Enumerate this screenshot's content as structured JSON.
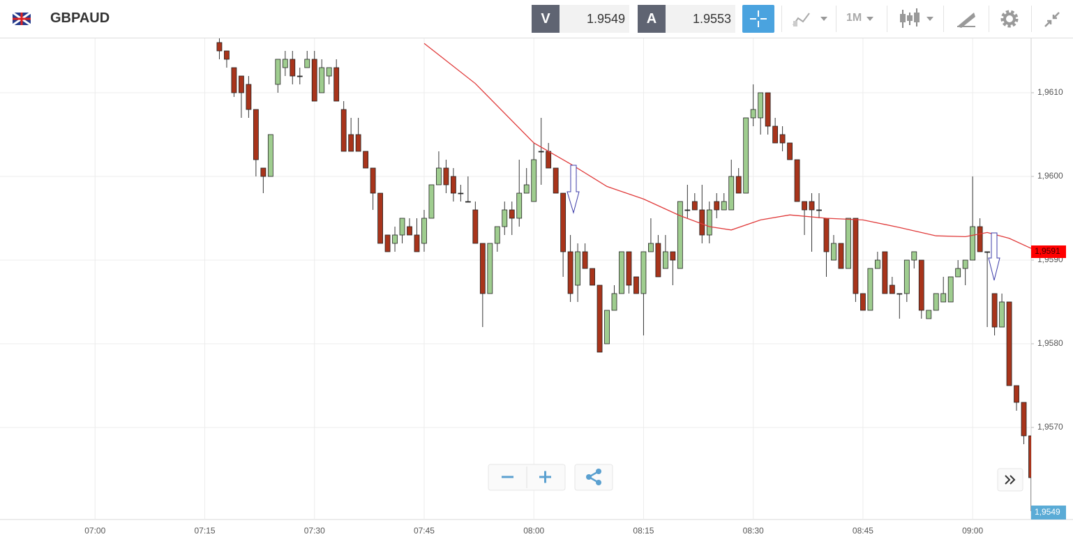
{
  "header": {
    "symbol": "GBPAUD",
    "bid_label": "V",
    "bid": 1.9549,
    "ask_label": "A",
    "ask": 1.9553,
    "timeframe": "1M"
  },
  "chart_data": {
    "type": "candlestick",
    "title": "GBPAUD",
    "x": [
      "07:17",
      "07:18",
      "07:19",
      "07:20",
      "07:21",
      "07:22",
      "07:23",
      "07:24",
      "07:25",
      "07:26",
      "07:27",
      "07:28",
      "07:29",
      "07:30",
      "07:31",
      "07:32",
      "07:33",
      "07:34",
      "07:35",
      "07:36",
      "07:37",
      "07:38",
      "07:39",
      "07:40",
      "07:41",
      "07:42",
      "07:43",
      "07:44",
      "07:45",
      "07:46",
      "07:47",
      "07:48",
      "07:49",
      "07:50",
      "07:51",
      "07:52",
      "07:53",
      "07:54",
      "07:55",
      "07:56",
      "07:57",
      "07:58",
      "07:59",
      "08:00",
      "08:01",
      "08:02",
      "08:03",
      "08:04",
      "08:05",
      "08:06",
      "08:07",
      "08:08",
      "08:09",
      "08:10",
      "08:11",
      "08:12",
      "08:13",
      "08:14",
      "08:15",
      "08:16",
      "08:17",
      "08:18",
      "08:19",
      "08:20",
      "08:21",
      "08:22",
      "08:23",
      "08:24",
      "08:25",
      "08:26",
      "08:27",
      "08:28",
      "08:29",
      "08:30",
      "08:31",
      "08:32",
      "08:33",
      "08:34",
      "08:35",
      "08:36",
      "08:37",
      "08:38",
      "08:39",
      "08:40",
      "08:41",
      "08:42",
      "08:43",
      "08:44",
      "08:45",
      "08:46",
      "08:47",
      "08:48",
      "08:49",
      "08:50",
      "08:51",
      "08:52",
      "08:53",
      "08:54",
      "08:55",
      "08:56",
      "08:57",
      "08:58",
      "08:59",
      "09:00",
      "09:01",
      "09:02",
      "09:03",
      "09:04",
      "09:05",
      "09:06",
      "09:07",
      "09:08"
    ],
    "open": [
      1.9616,
      1.9615,
      1.9613,
      1.9612,
      1.9611,
      1.9608,
      1.9601,
      1.96,
      1.9611,
      1.9613,
      1.9614,
      1.9612,
      1.9613,
      1.9614,
      1.961,
      1.9612,
      1.9613,
      1.9608,
      1.9605,
      1.9605,
      1.9603,
      1.9601,
      1.9598,
      1.9593,
      1.9592,
      1.9593,
      1.9594,
      1.9593,
      1.9592,
      1.9595,
      1.9599,
      1.9601,
      1.96,
      1.9598,
      1.9597,
      1.9596,
      1.9592,
      1.9586,
      1.9592,
      1.9594,
      1.9596,
      1.9595,
      1.9598,
      1.9597,
      1.9603,
      1.9603,
      1.9601,
      1.9598,
      1.9591,
      1.9587,
      1.9591,
      1.9589,
      1.9587,
      1.958,
      1.9584,
      1.9586,
      1.9591,
      1.9588,
      1.9586,
      1.9591,
      1.9592,
      1.9589,
      1.9591,
      1.9589,
      1.9596,
      1.9597,
      1.9596,
      1.9593,
      1.9597,
      1.9596,
      1.9596,
      1.96,
      1.9598,
      1.9607,
      1.9607,
      1.961,
      1.9606,
      1.9605,
      1.9604,
      1.9602,
      1.9597,
      1.9597,
      1.9596,
      1.9595,
      1.959,
      1.9592,
      1.9589,
      1.9595,
      1.9586,
      1.9584,
      1.9589,
      1.9591,
      1.9587,
      1.9586,
      1.9586,
      1.959,
      1.959,
      1.9583,
      1.9584,
      1.9585,
      1.9585,
      1.9588,
      1.9589,
      1.959,
      1.9594,
      1.9591,
      1.9586,
      1.9582,
      1.9585,
      1.9575,
      1.9573,
      1.9569
    ],
    "high": [
      1.9617,
      1.9615,
      1.9613,
      1.9612,
      1.9612,
      1.9608,
      1.9601,
      1.9605,
      1.9614,
      1.9615,
      1.9615,
      1.9613,
      1.9615,
      1.9615,
      1.9614,
      1.9613,
      1.9614,
      1.9609,
      1.9607,
      1.9607,
      1.9603,
      1.9601,
      1.9598,
      1.9593,
      1.9594,
      1.9595,
      1.9595,
      1.9595,
      1.9596,
      1.9599,
      1.9603,
      1.9602,
      1.9601,
      1.9599,
      1.96,
      1.9597,
      1.9592,
      1.9592,
      1.9594,
      1.9597,
      1.9597,
      1.9602,
      1.9601,
      1.9604,
      1.9607,
      1.9604,
      1.9601,
      1.9598,
      1.9593,
      1.9592,
      1.9592,
      1.9589,
      1.9587,
      1.9584,
      1.9587,
      1.9591,
      1.9591,
      1.9588,
      1.9591,
      1.9595,
      1.9593,
      1.9593,
      1.9591,
      1.9597,
      1.9599,
      1.9598,
      1.9599,
      1.9597,
      1.9598,
      1.9598,
      1.9602,
      1.9601,
      1.9607,
      1.9611,
      1.961,
      1.961,
      1.9607,
      1.9606,
      1.9604,
      1.9602,
      1.9597,
      1.9598,
      1.9598,
      1.9595,
      1.9593,
      1.9592,
      1.9595,
      1.9595,
      1.9586,
      1.9589,
      1.9591,
      1.9591,
      1.9588,
      1.9586,
      1.959,
      1.9591,
      1.959,
      1.9584,
      1.9586,
      1.9588,
      1.9588,
      1.959,
      1.959,
      1.96,
      1.9595,
      1.9591,
      1.9586,
      1.9586,
      1.9585,
      1.9575,
      1.9573,
      1.9569
    ],
    "low": [
      1.9614,
      1.9613,
      1.96095,
      1.9607,
      1.9607,
      1.96,
      1.9598,
      1.96,
      1.961,
      1.9612,
      1.9611,
      1.9611,
      1.9613,
      1.9609,
      1.961,
      1.9611,
      1.9609,
      1.9603,
      1.9603,
      1.9603,
      1.9601,
      1.9596,
      1.9592,
      1.9591,
      1.9591,
      1.9592,
      1.9593,
      1.9591,
      1.9591,
      1.9595,
      1.9599,
      1.9598,
      1.9597,
      1.9597,
      1.9597,
      1.9592,
      1.9582,
      1.9586,
      1.9591,
      1.9593,
      1.9593,
      1.9594,
      1.9598,
      1.9597,
      1.9599,
      1.9601,
      1.9598,
      1.9588,
      1.9585,
      1.9585,
      1.9589,
      1.9587,
      1.9579,
      1.958,
      1.9584,
      1.9586,
      1.9586,
      1.9586,
      1.9581,
      1.9591,
      1.9588,
      1.9589,
      1.9587,
      1.9589,
      1.9595,
      1.9596,
      1.9592,
      1.9592,
      1.9595,
      1.9596,
      1.9596,
      1.9598,
      1.9598,
      1.9606,
      1.9605,
      1.9605,
      1.9604,
      1.9603,
      1.9602,
      1.9597,
      1.9593,
      1.9591,
      1.9595,
      1.9588,
      1.959,
      1.9589,
      1.9589,
      1.9585,
      1.9584,
      1.9584,
      1.9589,
      1.9586,
      1.9586,
      1.9583,
      1.9585,
      1.9589,
      1.9583,
      1.9583,
      1.9584,
      1.9585,
      1.9585,
      1.9588,
      1.9587,
      1.959,
      1.9591,
      1.9582,
      1.9581,
      1.9582,
      1.9575,
      1.9572,
      1.9568,
      1.956
    ],
    "close": [
      1.9615,
      1.9614,
      1.961,
      1.961,
      1.9608,
      1.9602,
      1.96,
      1.9605,
      1.9614,
      1.9614,
      1.9612,
      1.9612,
      1.9614,
      1.9609,
      1.9613,
      1.9613,
      1.9609,
      1.9603,
      1.9603,
      1.9603,
      1.9601,
      1.9598,
      1.9592,
      1.9591,
      1.9593,
      1.9595,
      1.9593,
      1.9591,
      1.9595,
      1.9599,
      1.9601,
      1.9599,
      1.9598,
      1.9598,
      1.9597,
      1.9592,
      1.9586,
      1.9592,
      1.9594,
      1.9596,
      1.9595,
      1.9598,
      1.9599,
      1.9602,
      1.9603,
      1.9601,
      1.9598,
      1.9591,
      1.9586,
      1.9591,
      1.9589,
      1.9587,
      1.9579,
      1.9584,
      1.9586,
      1.9591,
      1.9587,
      1.9586,
      1.9591,
      1.9592,
      1.9588,
      1.9591,
      1.959,
      1.9597,
      1.9596,
      1.9596,
      1.9593,
      1.9596,
      1.9596,
      1.9597,
      1.96,
      1.9598,
      1.9607,
      1.9608,
      1.961,
      1.9606,
      1.9604,
      1.9604,
      1.9602,
      1.9597,
      1.9596,
      1.9596,
      1.9596,
      1.9591,
      1.9592,
      1.9589,
      1.9595,
      1.9586,
      1.9584,
      1.9589,
      1.959,
      1.9586,
      1.9586,
      1.9586,
      1.959,
      1.9591,
      1.9584,
      1.9584,
      1.9586,
      1.9586,
      1.9588,
      1.9589,
      1.959,
      1.9594,
      1.9591,
      1.9591,
      1.9582,
      1.9585,
      1.9575,
      1.9573,
      1.9569,
      1.9564
    ],
    "up_color": "#9fcd8f",
    "down_color": "#a8341b",
    "overlay_line": {
      "color": "#e03a3a",
      "x": [
        "07:45",
        "07:52",
        "08:00",
        "08:05",
        "08:10",
        "08:15",
        "08:20",
        "08:24",
        "08:27",
        "08:31",
        "08:35",
        "08:40",
        "08:45",
        "08:50",
        "08:55",
        "08:59",
        "09:02",
        "09:05",
        "09:08"
      ],
      "values": [
        1.96159,
        1.96111,
        1.9604,
        1.96015,
        1.95988,
        1.95973,
        1.95953,
        1.9594,
        1.95936,
        1.95948,
        1.95954,
        1.9595,
        1.95948,
        1.95939,
        1.95929,
        1.95928,
        1.95933,
        1.95926,
        1.95914
      ],
      "last_value": {
        "value": 1.9591,
        "label": "1,9591"
      }
    },
    "current_price": {
      "value": 1.9549,
      "label": "1,9549"
    },
    "xlim": [
      "06:47",
      "09:08"
    ],
    "xticks": [
      "07:00",
      "07:15",
      "07:30",
      "07:45",
      "08:00",
      "08:15",
      "08:30",
      "08:45",
      "09:00"
    ],
    "ylim": [
      1.9559,
      1.96165
    ],
    "yticks": [
      {
        "value": 1.957,
        "label": "1,9570"
      },
      {
        "value": 1.958,
        "label": "1,9580"
      },
      {
        "value": 1.959,
        "label": "1,9590"
      },
      {
        "value": 1.96,
        "label": "1,9600"
      },
      {
        "value": 1.961,
        "label": "1,9610"
      }
    ],
    "grid": true
  }
}
